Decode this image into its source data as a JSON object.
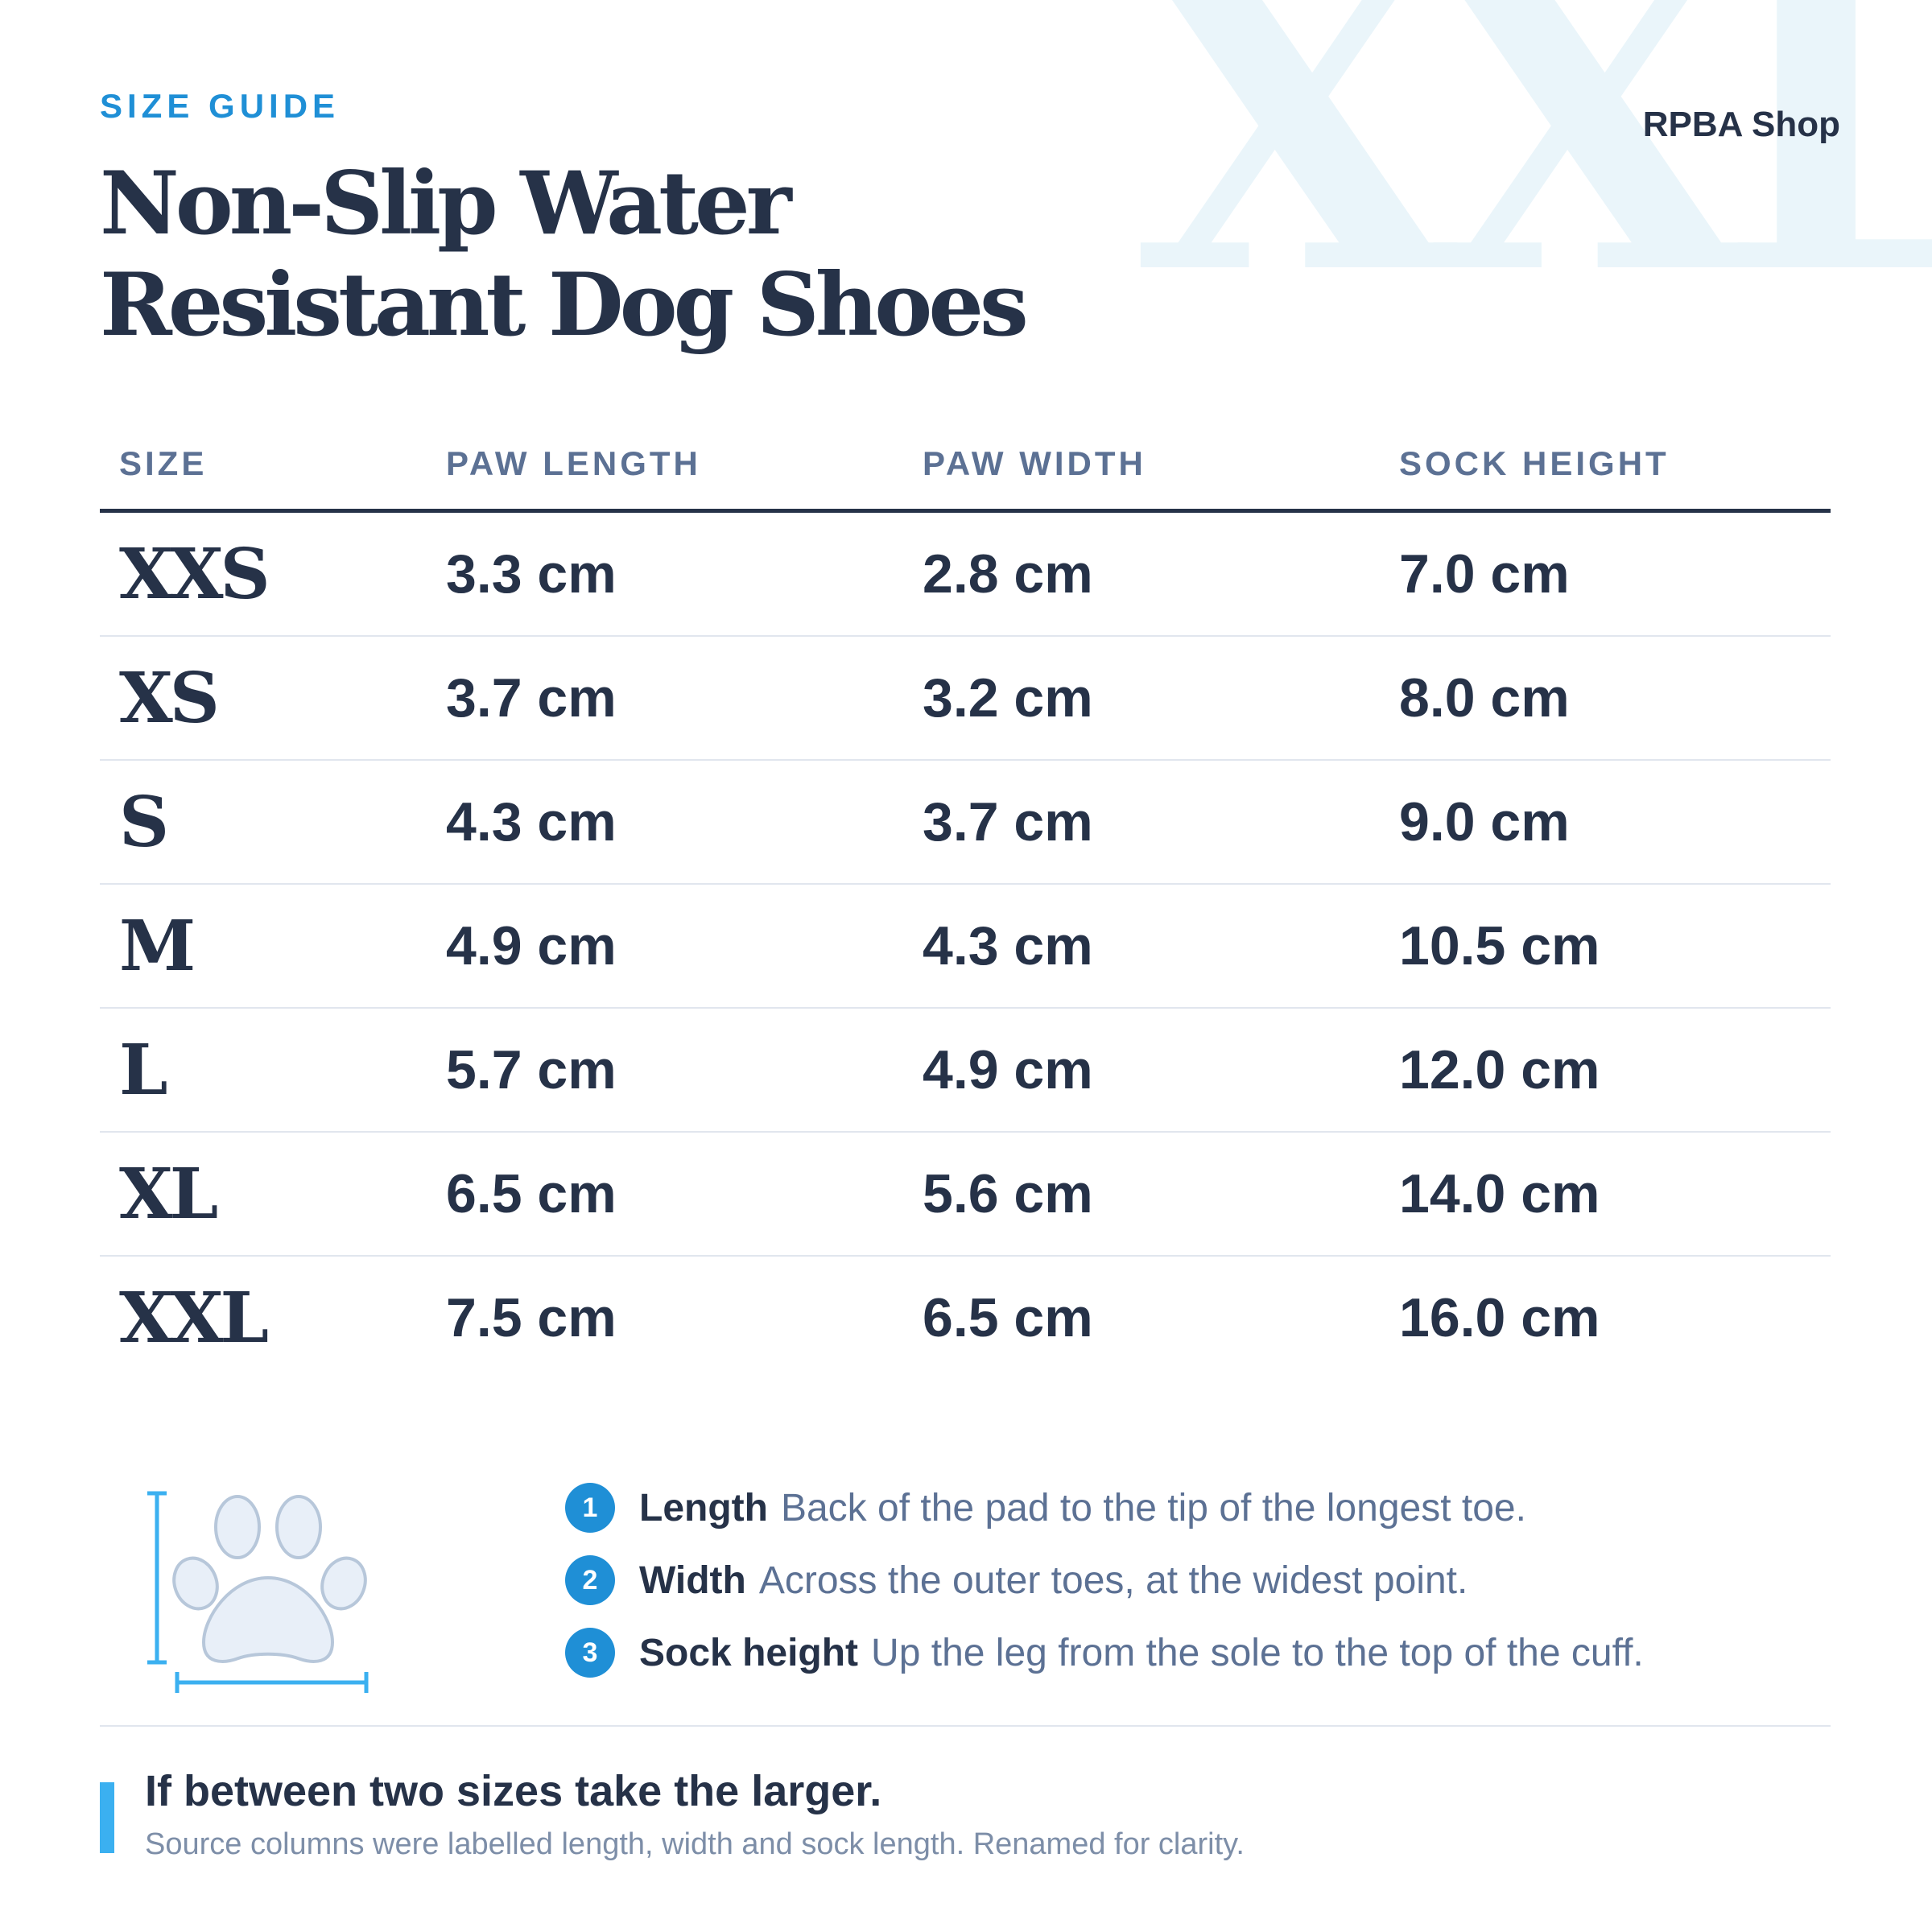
{
  "watermark": "XXL",
  "header": {
    "eyebrow": "SIZE GUIDE",
    "title": "Non-Slip Water Resistant Dog Shoes",
    "brand": "RPBA Shop"
  },
  "table": {
    "columns": [
      "SIZE",
      "PAW LENGTH",
      "PAW WIDTH",
      "SOCK HEIGHT"
    ],
    "rows": [
      [
        "XXS",
        "3.3 cm",
        "2.8 cm",
        "7.0 cm"
      ],
      [
        "XS",
        "3.7 cm",
        "3.2 cm",
        "8.0 cm"
      ],
      [
        "S",
        "4.3 cm",
        "3.7 cm",
        "9.0 cm"
      ],
      [
        "M",
        "4.9 cm",
        "4.3 cm",
        "10.5 cm"
      ],
      [
        "L",
        "5.7 cm",
        "4.9 cm",
        "12.0 cm"
      ],
      [
        "XL",
        "6.5 cm",
        "5.6 cm",
        "14.0 cm"
      ],
      [
        "XXL",
        "7.5 cm",
        "6.5 cm",
        "16.0 cm"
      ]
    ]
  },
  "diagram": {
    "icon": "paw-print-icon"
  },
  "legend": [
    {
      "number": "1",
      "term": "Length",
      "description": "Back of the pad to the tip of the longest toe."
    },
    {
      "number": "2",
      "term": "Width",
      "description": "Across the outer toes, at the widest point."
    },
    {
      "number": "3",
      "term": "Sock height",
      "description": "Up the leg from the sole to the top of the cuff."
    }
  ],
  "tip": {
    "title": "If between two sizes take the larger.",
    "note": "Source columns were labelled length, width and sock length. Renamed for clarity."
  },
  "colors": {
    "accent": "#1f8fd6",
    "ink": "#263248",
    "muted": "#5c7194",
    "paw_fill": "#e8eff8",
    "measure_line": "#3bb0f0"
  }
}
